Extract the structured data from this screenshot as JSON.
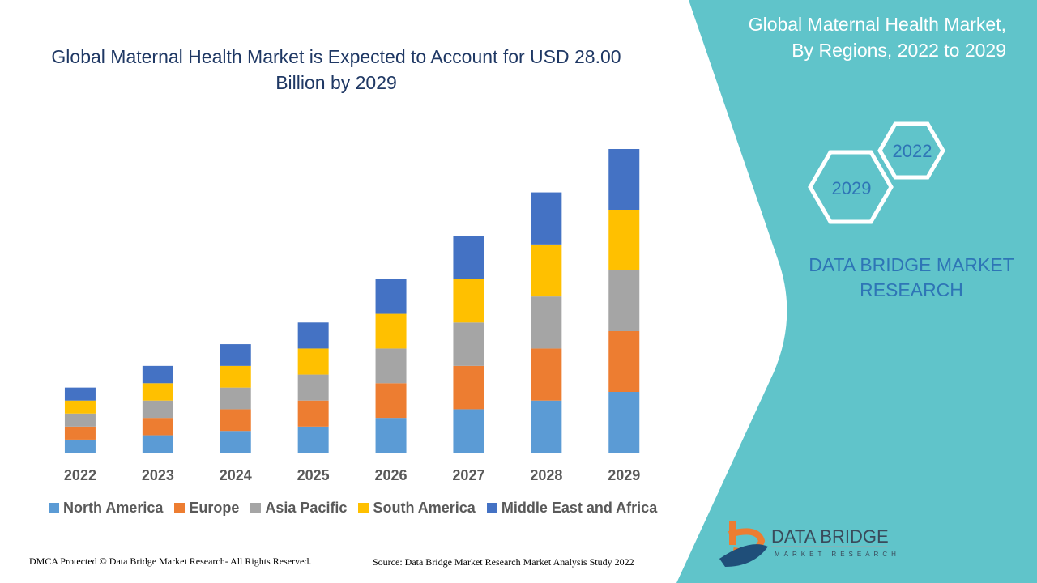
{
  "title": "Global Maternal Health Market is Expected to Account for USD 28.00 Billion by 2029",
  "panel": {
    "title": "Global Maternal Health Market, By Regions, 2022 to 2029",
    "hex_labels": [
      "2022",
      "2029"
    ],
    "brand_text": "DATA BRIDGE MARKET RESEARCH",
    "logo_text": "DATA BRIDGE",
    "logo_subtext": "MARKET RESEARCH",
    "color": "#60c4ca"
  },
  "footer": {
    "left": "DMCA Protected © Data Bridge Market Research- All Rights Reserved.",
    "right": "Source: Data Bridge Market Research Market Analysis Study 2022"
  },
  "chart_data": {
    "type": "bar",
    "stacked": true,
    "title": "Global Maternal Health Market is Expected to Account for USD 28.00 Billion by 2029",
    "xlabel": "",
    "ylabel": "",
    "ylim": [
      0,
      28
    ],
    "grid": false,
    "legend_position": "bottom",
    "categories": [
      "2022",
      "2023",
      "2024",
      "2025",
      "2026",
      "2027",
      "2028",
      "2029"
    ],
    "series": [
      {
        "name": "North America",
        "color": "#5b9bd5",
        "values": [
          1.2,
          1.6,
          2.0,
          2.4,
          3.2,
          4.0,
          4.8,
          5.6
        ]
      },
      {
        "name": "Europe",
        "color": "#ed7d31",
        "values": [
          1.2,
          1.6,
          2.0,
          2.4,
          3.2,
          4.0,
          4.8,
          5.6
        ]
      },
      {
        "name": "Asia Pacific",
        "color": "#a5a5a5",
        "values": [
          1.2,
          1.6,
          2.0,
          2.4,
          3.2,
          4.0,
          4.8,
          5.6
        ]
      },
      {
        "name": "South America",
        "color": "#ffc000",
        "values": [
          1.2,
          1.6,
          2.0,
          2.4,
          3.2,
          4.0,
          4.8,
          5.6
        ]
      },
      {
        "name": "Middle East and Africa",
        "color": "#4472c4",
        "values": [
          1.2,
          1.6,
          2.0,
          2.4,
          3.2,
          4.0,
          4.8,
          5.6
        ]
      }
    ]
  }
}
